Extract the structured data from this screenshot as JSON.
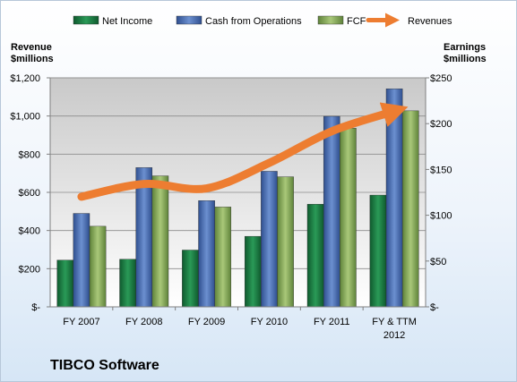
{
  "chart_data": {
    "type": "bar",
    "title": "TIBCO Software",
    "categories": [
      "FY 2007",
      "FY 2008",
      "FY 2009",
      "FY 2010",
      "FY 2011",
      "FY & TTM|2012"
    ],
    "left_axis": {
      "label_line1": "Revenue",
      "label_line2": "$millions",
      "ticks": [
        "$-",
        "$200",
        "$400",
        "$600",
        "$800",
        "$1,000",
        "$1,200"
      ],
      "range": [
        0,
        1200
      ]
    },
    "right_axis": {
      "label_line1": "Earnings",
      "label_line2": "$millions",
      "ticks": [
        "$-",
        "$50",
        "$100",
        "$150",
        "$200",
        "$250"
      ],
      "range": [
        0,
        250
      ]
    },
    "series": [
      {
        "name": "Net Income",
        "type": "bar",
        "axis": "right",
        "color": "#1e7a43",
        "values": [
          51,
          52,
          62,
          77,
          112,
          122
        ]
      },
      {
        "name": "Cash from Operations",
        "type": "bar",
        "axis": "right",
        "color": "#4a72b8",
        "values": [
          102,
          152,
          116,
          148,
          208,
          238
        ]
      },
      {
        "name": "FCF",
        "type": "bar",
        "axis": "right",
        "color": "#86ac55",
        "values": [
          88,
          143,
          109,
          142,
          195,
          214
        ]
      },
      {
        "name": "Revenues",
        "type": "line",
        "axis": "left",
        "color": "#ed7d31",
        "values": [
          577,
          644,
          621,
          754,
          920,
          1025
        ]
      }
    ],
    "grid": true,
    "legend": "top"
  }
}
